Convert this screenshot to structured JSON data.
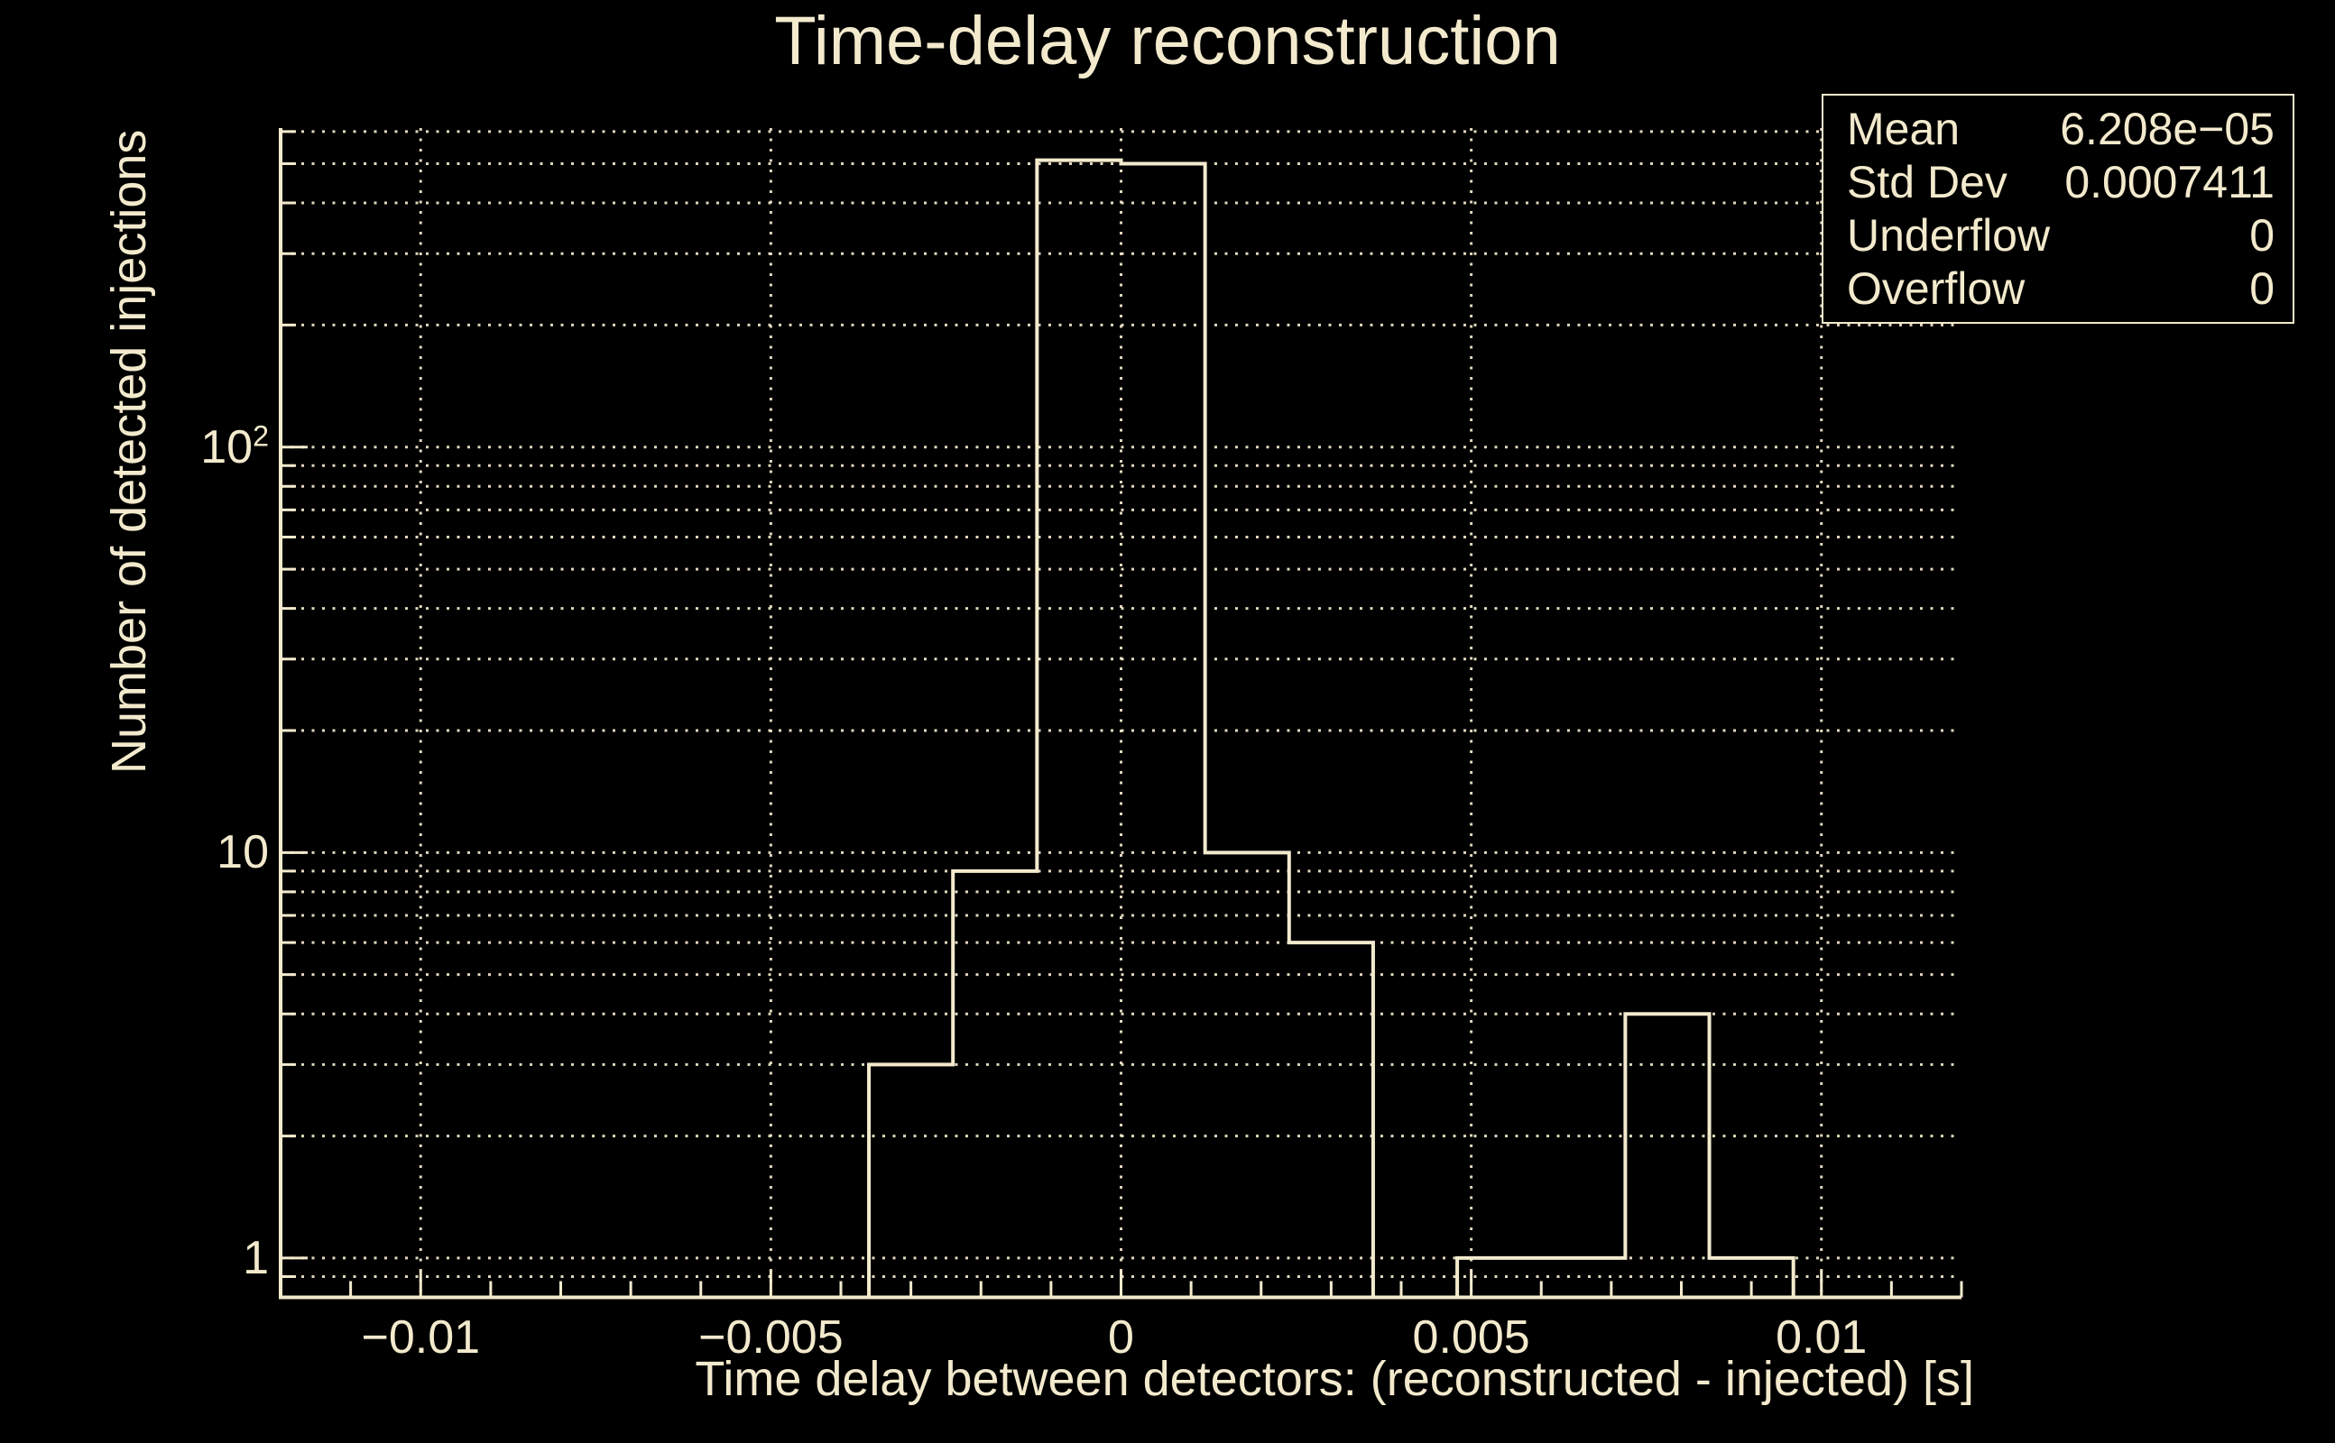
{
  "window": {
    "background": "#000000",
    "foreground": "#F3EACD"
  },
  "chart_data": {
    "type": "bar",
    "subtype": "step-histogram-outline",
    "title": "Time-delay reconstruction",
    "xlabel": "Time delay between detectors: (reconstructed - injected) [s]",
    "ylabel": "Number of detected injections",
    "xlim": [
      -0.012,
      0.012
    ],
    "ylim": [
      0.8,
      612
    ],
    "y_scale": "log",
    "grid": true,
    "line_color": "#F3EACD",
    "bins": {
      "start": -0.012,
      "width": 0.0012,
      "counts": [
        0,
        0,
        0,
        0,
        0,
        0,
        0,
        3,
        9,
        510,
        500,
        10,
        6,
        0,
        1,
        1,
        4,
        1,
        0,
        0
      ]
    },
    "x_ticks": [
      {
        "v": -0.01,
        "label": "−0.01"
      },
      {
        "v": -0.005,
        "label": "−0.005"
      },
      {
        "v": 0,
        "label": "0"
      },
      {
        "v": 0.005,
        "label": "0.005"
      },
      {
        "v": 0.01,
        "label": "0.01"
      }
    ],
    "x_minor_tick_step": 0.001,
    "y_ticks": [
      {
        "v": 1,
        "label": "1",
        "exp": ""
      },
      {
        "v": 10,
        "label": "10",
        "exp": ""
      },
      {
        "v": 100,
        "label": "10",
        "exp": "2"
      }
    ]
  },
  "stats_box": {
    "rows": [
      {
        "label": "Mean",
        "value": "6.208e−05"
      },
      {
        "label": "Std Dev",
        "value": "0.0007411"
      },
      {
        "label": "Underflow",
        "value": "0"
      },
      {
        "label": "Overflow",
        "value": "0"
      }
    ]
  }
}
